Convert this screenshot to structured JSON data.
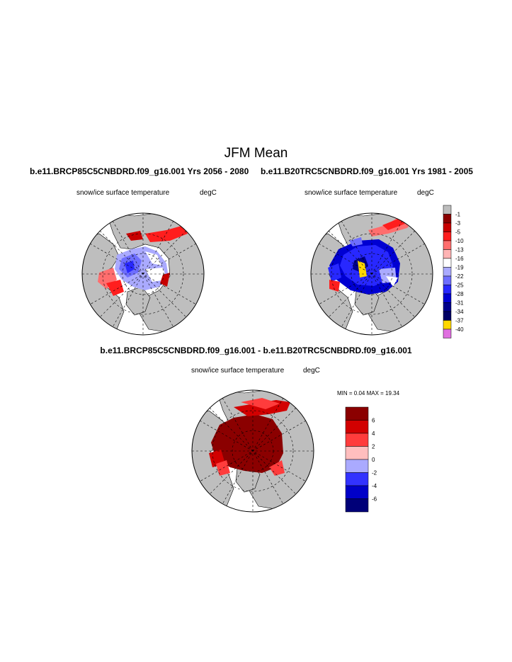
{
  "page": {
    "title": "JFM Mean"
  },
  "panels": [
    {
      "case_title": "b.e11.BRCP85C5CNBDRD.f09_g16.001  Yrs 2056 - 2080",
      "variable": "snow/ice surface temperature",
      "units": "degC"
    },
    {
      "case_title": "b.e11.B20TRC5CNBDRD.f09_g16.001  Yrs 1981 - 2005",
      "variable": "snow/ice surface temperature",
      "units": "degC"
    },
    {
      "case_title": "b.e11.BRCP85C5CNBDRD.f09_g16.001 - b.e11.B20TRC5CNBDRD.f09_g16.001",
      "variable": "snow/ice surface temperature",
      "units": "degC",
      "stats": "MIN =   0.04 MAX =  19.34"
    }
  ],
  "colorbars": {
    "absolute": {
      "labels": [
        "-1",
        "-3",
        "-5",
        "-10",
        "-13",
        "-16",
        "-19",
        "-22",
        "-25",
        "-28",
        "-31",
        "-34",
        "-37",
        "-40"
      ],
      "colors": [
        "#bdbdbd",
        "#8b0000",
        "#c80000",
        "#ff1e1e",
        "#ff6e6e",
        "#ffb4b4",
        "#ffffff",
        "#aaaaff",
        "#6e6eff",
        "#2828ff",
        "#0000d2",
        "#00008c",
        "#000064",
        "#ffd700",
        "#e070e0"
      ]
    },
    "difference": {
      "labels": [
        "6",
        "4",
        "2",
        "0",
        "-2",
        "-4",
        "-6"
      ],
      "colors": [
        "#8b0000",
        "#d20000",
        "#ff3c3c",
        "#ffbebe",
        "#aaaaff",
        "#3232ff",
        "#0000c8",
        "#000078"
      ]
    }
  }
}
